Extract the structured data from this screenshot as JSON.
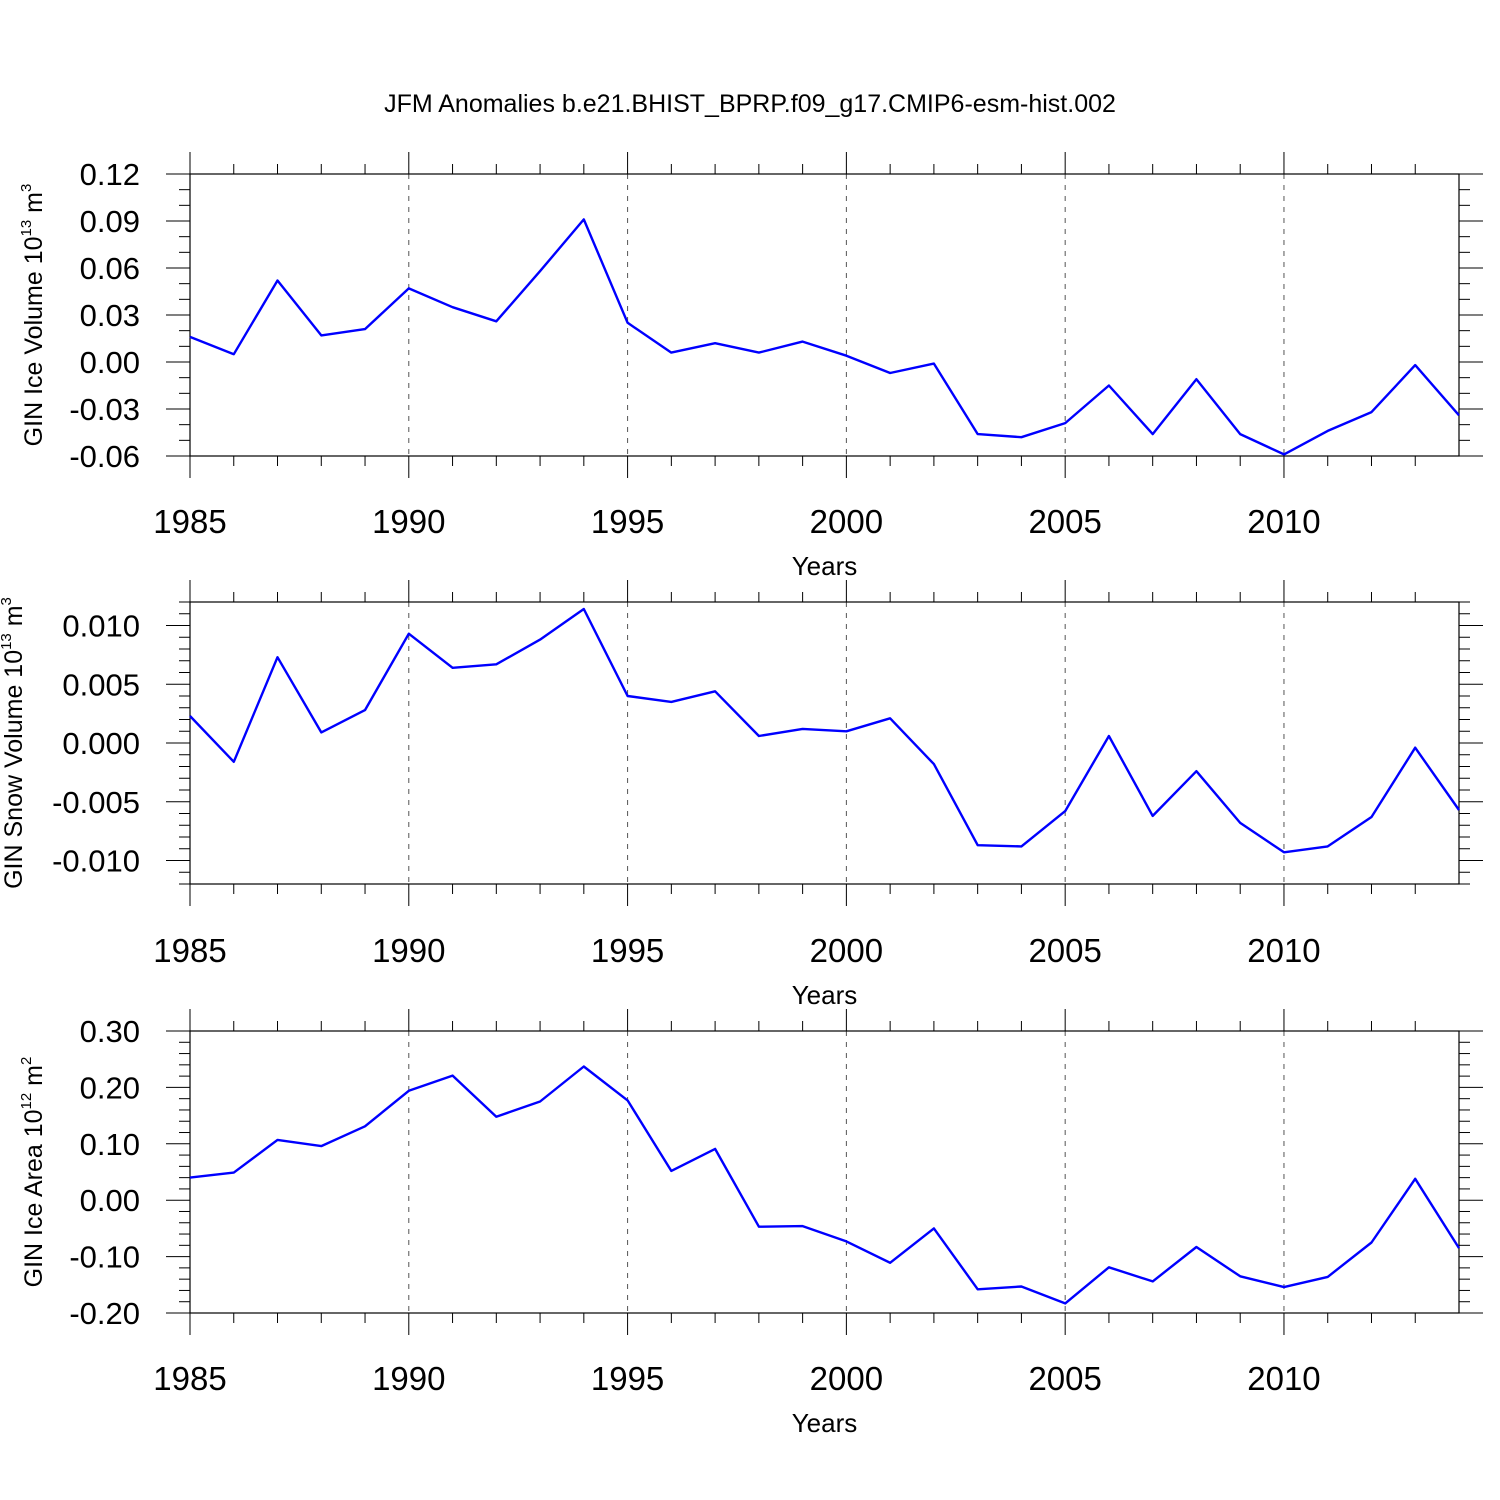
{
  "title": "JFM Anomalies b.e21.BHIST_BPRP.f09_g17.CMIP6-esm-hist.002",
  "colors": {
    "line": "#0000ff",
    "axis": "#000000",
    "grid": "#555555"
  },
  "chart_data": [
    {
      "type": "line",
      "name": "ice-volume",
      "ylabel": {
        "prefix": "GIN Ice Volume 10",
        "exp": "13",
        "unit": " m",
        "unit_exp": "3"
      },
      "xlabel": "Years",
      "xlim": [
        1985,
        2014
      ],
      "ylim": [
        -0.06,
        0.12
      ],
      "x_ticks": [
        1985,
        1990,
        1995,
        2000,
        2005,
        2010
      ],
      "x_tick_labels": [
        "1985",
        "1990",
        "1995",
        "2000",
        "2005",
        "2010"
      ],
      "y_ticks": [
        -0.06,
        -0.03,
        0.0,
        0.03,
        0.06,
        0.09,
        0.12
      ],
      "y_tick_labels": [
        "-0.06",
        "-0.03",
        "0.00",
        "0.03",
        "0.06",
        "0.09",
        "0.12"
      ],
      "y_minor_step": 0.01,
      "grid_x": [
        1990,
        1995,
        2000,
        2005,
        2010
      ],
      "x": [
        1985,
        1986,
        1987,
        1988,
        1989,
        1990,
        1991,
        1992,
        1993,
        1994,
        1995,
        1996,
        1997,
        1998,
        1999,
        2000,
        2001,
        2002,
        2003,
        2004,
        2005,
        2006,
        2007,
        2008,
        2009,
        2010,
        2011,
        2012,
        2013,
        2014
      ],
      "values": [
        0.016,
        0.005,
        0.052,
        0.017,
        0.021,
        0.047,
        0.035,
        0.026,
        0.058,
        0.091,
        0.025,
        0.006,
        0.012,
        0.006,
        0.013,
        0.004,
        -0.007,
        -0.001,
        -0.046,
        -0.048,
        -0.039,
        -0.015,
        -0.046,
        -0.011,
        -0.046,
        -0.059,
        -0.044,
        -0.032,
        -0.002,
        -0.034
      ]
    },
    {
      "type": "line",
      "name": "snow-volume",
      "ylabel": {
        "prefix": "GIN Snow Volume 10",
        "exp": "13",
        "unit": " m",
        "unit_exp": "3"
      },
      "xlabel": "Years",
      "xlim": [
        1985,
        2014
      ],
      "ylim": [
        -0.012,
        0.012
      ],
      "x_ticks": [
        1985,
        1990,
        1995,
        2000,
        2005,
        2010
      ],
      "x_tick_labels": [
        "1985",
        "1990",
        "1995",
        "2000",
        "2005",
        "2010"
      ],
      "y_ticks": [
        -0.01,
        -0.005,
        0.0,
        0.005,
        0.01
      ],
      "y_tick_labels": [
        "-0.010",
        "-0.005",
        "0.000",
        "0.005",
        "0.010"
      ],
      "y_minor_step": 0.001,
      "grid_x": [
        1990,
        1995,
        2000,
        2005,
        2010
      ],
      "x": [
        1985,
        1986,
        1987,
        1988,
        1989,
        1990,
        1991,
        1992,
        1993,
        1994,
        1995,
        1996,
        1997,
        1998,
        1999,
        2000,
        2001,
        2002,
        2003,
        2004,
        2005,
        2006,
        2007,
        2008,
        2009,
        2010,
        2011,
        2012,
        2013,
        2014
      ],
      "values": [
        0.0023,
        -0.0016,
        0.0073,
        0.0009,
        0.0028,
        0.0093,
        0.0064,
        0.0067,
        0.0088,
        0.0114,
        0.004,
        0.0035,
        0.0044,
        0.0006,
        0.0012,
        0.001,
        0.0021,
        -0.0018,
        -0.0087,
        -0.0088,
        -0.0058,
        0.0006,
        -0.0062,
        -0.0024,
        -0.0068,
        -0.0093,
        -0.0088,
        -0.0063,
        -0.0004,
        -0.0057
      ]
    },
    {
      "type": "line",
      "name": "ice-area",
      "ylabel": {
        "prefix": "GIN Ice Area 10",
        "exp": "12",
        "unit": " m",
        "unit_exp": "2"
      },
      "xlabel": "Years",
      "xlim": [
        1985,
        2014
      ],
      "ylim": [
        -0.2,
        0.3
      ],
      "x_ticks": [
        1985,
        1990,
        1995,
        2000,
        2005,
        2010
      ],
      "x_tick_labels": [
        "1985",
        "1990",
        "1995",
        "2000",
        "2005",
        "2010"
      ],
      "y_ticks": [
        -0.2,
        -0.1,
        0.0,
        0.1,
        0.2,
        0.3
      ],
      "y_tick_labels": [
        "-0.20",
        "-0.10",
        "0.00",
        "0.10",
        "0.20",
        "0.30"
      ],
      "y_minor_step": 0.02,
      "grid_x": [
        1990,
        1995,
        2000,
        2005,
        2010
      ],
      "x": [
        1985,
        1986,
        1987,
        1988,
        1989,
        1990,
        1991,
        1992,
        1993,
        1994,
        1995,
        1996,
        1997,
        1998,
        1999,
        2000,
        2001,
        2002,
        2003,
        2004,
        2005,
        2006,
        2007,
        2008,
        2009,
        2010,
        2011,
        2012,
        2013,
        2014
      ],
      "values": [
        0.04,
        0.049,
        0.107,
        0.096,
        0.131,
        0.194,
        0.221,
        0.148,
        0.175,
        0.237,
        0.177,
        0.052,
        0.091,
        -0.047,
        -0.046,
        -0.073,
        -0.111,
        -0.05,
        -0.158,
        -0.153,
        -0.183,
        -0.119,
        -0.144,
        -0.083,
        -0.135,
        -0.154,
        -0.136,
        -0.075,
        0.038,
        -0.085
      ]
    }
  ]
}
